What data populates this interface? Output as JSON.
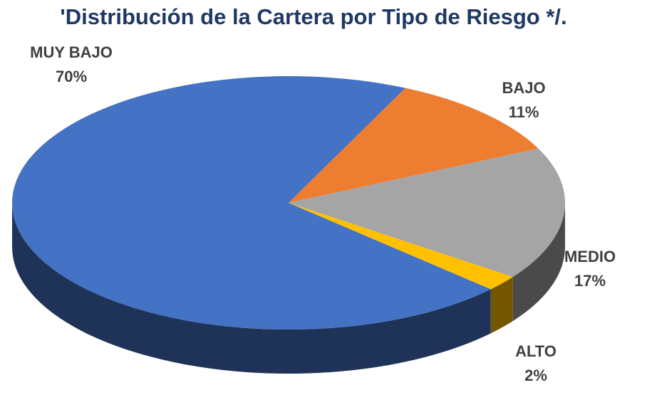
{
  "chart_data": {
    "type": "pie",
    "title": "'Distribución de la Cartera por Tipo de Riesgo */.",
    "categories": [
      "MUY BAJO",
      "BAJO",
      "MEDIO",
      "ALTO"
    ],
    "values": [
      70,
      11,
      17,
      2
    ],
    "value_labels": [
      "70%",
      "11%",
      "17%",
      "2%"
    ],
    "colors": [
      "#4472c4",
      "#ed7d31",
      "#a5a5a5",
      "#ffc000"
    ]
  }
}
